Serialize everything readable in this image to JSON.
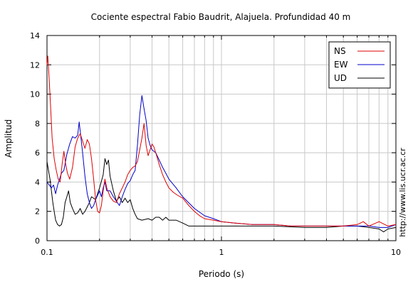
{
  "chart_data": {
    "type": "line",
    "title": "Cociente espectral Fabio Baudrit, Alajuela. Profundidad 40 m",
    "xlabel": "Periodo (s)",
    "ylabel": "Amplitud",
    "x_scale": "log",
    "xlim": [
      0.1,
      10
    ],
    "ylim": [
      0,
      14
    ],
    "x_tick_labels": [
      {
        "value": 0.1,
        "label": "0.1"
      },
      {
        "value": 1,
        "label": "1"
      },
      {
        "value": 10,
        "label": "10"
      }
    ],
    "y_ticks": [
      0,
      2,
      4,
      6,
      8,
      10,
      12,
      14
    ],
    "grid": true,
    "legend_position": "top-right",
    "source_note": "http://www.lis.ucr.ac.cr",
    "series": [
      {
        "name": "NS",
        "color": "#e00000",
        "points": [
          [
            0.1,
            12.0
          ],
          [
            0.101,
            12.6
          ],
          [
            0.103,
            11.0
          ],
          [
            0.105,
            9.0
          ],
          [
            0.107,
            7.0
          ],
          [
            0.11,
            5.6
          ],
          [
            0.113,
            4.8
          ],
          [
            0.116,
            4.2
          ],
          [
            0.119,
            4.0
          ],
          [
            0.122,
            5.2
          ],
          [
            0.125,
            6.1
          ],
          [
            0.128,
            5.2
          ],
          [
            0.131,
            4.6
          ],
          [
            0.135,
            4.2
          ],
          [
            0.14,
            5.0
          ],
          [
            0.145,
            6.4
          ],
          [
            0.15,
            7.0
          ],
          [
            0.155,
            7.3
          ],
          [
            0.16,
            6.8
          ],
          [
            0.165,
            6.3
          ],
          [
            0.17,
            6.9
          ],
          [
            0.175,
            6.6
          ],
          [
            0.18,
            5.6
          ],
          [
            0.185,
            4.2
          ],
          [
            0.19,
            2.8
          ],
          [
            0.195,
            2.0
          ],
          [
            0.2,
            1.9
          ],
          [
            0.205,
            2.4
          ],
          [
            0.21,
            3.4
          ],
          [
            0.215,
            4.2
          ],
          [
            0.22,
            3.6
          ],
          [
            0.23,
            3.0
          ],
          [
            0.24,
            2.7
          ],
          [
            0.25,
            2.6
          ],
          [
            0.26,
            3.2
          ],
          [
            0.27,
            3.6
          ],
          [
            0.28,
            4.0
          ],
          [
            0.29,
            4.5
          ],
          [
            0.3,
            4.8
          ],
          [
            0.31,
            5.0
          ],
          [
            0.32,
            5.1
          ],
          [
            0.33,
            5.4
          ],
          [
            0.34,
            6.2
          ],
          [
            0.35,
            7.0
          ],
          [
            0.36,
            8.0
          ],
          [
            0.37,
            6.5
          ],
          [
            0.38,
            5.8
          ],
          [
            0.39,
            6.2
          ],
          [
            0.4,
            6.6
          ],
          [
            0.41,
            6.4
          ],
          [
            0.42,
            6.0
          ],
          [
            0.43,
            5.6
          ],
          [
            0.44,
            5.2
          ],
          [
            0.46,
            4.5
          ],
          [
            0.48,
            4.0
          ],
          [
            0.5,
            3.6
          ],
          [
            0.53,
            3.3
          ],
          [
            0.56,
            3.1
          ],
          [
            0.6,
            2.9
          ],
          [
            0.65,
            2.4
          ],
          [
            0.7,
            2.0
          ],
          [
            0.75,
            1.7
          ],
          [
            0.8,
            1.5
          ],
          [
            0.9,
            1.4
          ],
          [
            1.0,
            1.3
          ],
          [
            1.2,
            1.2
          ],
          [
            1.5,
            1.1
          ],
          [
            2.0,
            1.1
          ],
          [
            2.5,
            1.0
          ],
          [
            3.0,
            1.0
          ],
          [
            3.5,
            1.0
          ],
          [
            4.0,
            1.0
          ],
          [
            5.0,
            1.0
          ],
          [
            6.0,
            1.1
          ],
          [
            6.5,
            1.3
          ],
          [
            7.0,
            1.0
          ],
          [
            8.0,
            1.3
          ],
          [
            9.0,
            1.0
          ],
          [
            10.0,
            1.1
          ]
        ]
      },
      {
        "name": "EW",
        "color": "#0000c8",
        "points": [
          [
            0.1,
            4.0
          ],
          [
            0.103,
            3.8
          ],
          [
            0.106,
            3.6
          ],
          [
            0.109,
            3.8
          ],
          [
            0.112,
            3.2
          ],
          [
            0.115,
            3.8
          ],
          [
            0.118,
            4.2
          ],
          [
            0.121,
            4.6
          ],
          [
            0.125,
            4.8
          ],
          [
            0.13,
            5.9
          ],
          [
            0.135,
            6.6
          ],
          [
            0.14,
            7.1
          ],
          [
            0.145,
            7.0
          ],
          [
            0.15,
            7.2
          ],
          [
            0.153,
            8.1
          ],
          [
            0.156,
            7.2
          ],
          [
            0.16,
            6.0
          ],
          [
            0.165,
            4.4
          ],
          [
            0.17,
            3.2
          ],
          [
            0.175,
            2.6
          ],
          [
            0.18,
            2.2
          ],
          [
            0.185,
            2.4
          ],
          [
            0.19,
            2.8
          ],
          [
            0.2,
            3.4
          ],
          [
            0.205,
            3.0
          ],
          [
            0.21,
            3.6
          ],
          [
            0.215,
            4.0
          ],
          [
            0.22,
            3.4
          ],
          [
            0.23,
            3.4
          ],
          [
            0.24,
            3.0
          ],
          [
            0.25,
            2.7
          ],
          [
            0.26,
            2.4
          ],
          [
            0.27,
            3.0
          ],
          [
            0.28,
            3.5
          ],
          [
            0.29,
            3.9
          ],
          [
            0.3,
            4.1
          ],
          [
            0.31,
            4.5
          ],
          [
            0.32,
            4.8
          ],
          [
            0.33,
            6.5
          ],
          [
            0.34,
            8.6
          ],
          [
            0.35,
            9.9
          ],
          [
            0.36,
            9.0
          ],
          [
            0.37,
            8.2
          ],
          [
            0.38,
            7.0
          ],
          [
            0.39,
            6.5
          ],
          [
            0.4,
            6.2
          ],
          [
            0.42,
            6.0
          ],
          [
            0.44,
            5.5
          ],
          [
            0.46,
            5.0
          ],
          [
            0.48,
            4.6
          ],
          [
            0.5,
            4.2
          ],
          [
            0.55,
            3.6
          ],
          [
            0.6,
            3.0
          ],
          [
            0.7,
            2.2
          ],
          [
            0.8,
            1.7
          ],
          [
            0.9,
            1.5
          ],
          [
            1.0,
            1.3
          ],
          [
            1.2,
            1.2
          ],
          [
            1.5,
            1.1
          ],
          [
            2.0,
            1.1
          ],
          [
            2.5,
            1.0
          ],
          [
            3.0,
            1.0
          ],
          [
            4.0,
            1.0
          ],
          [
            5.0,
            1.0
          ],
          [
            6.0,
            1.0
          ],
          [
            7.0,
            1.0
          ],
          [
            8.0,
            0.9
          ],
          [
            9.0,
            0.9
          ],
          [
            10.0,
            1.1
          ]
        ]
      },
      {
        "name": "UD",
        "color": "#000000",
        "points": [
          [
            0.1,
            5.4
          ],
          [
            0.102,
            4.8
          ],
          [
            0.104,
            4.2
          ],
          [
            0.106,
            3.4
          ],
          [
            0.108,
            2.6
          ],
          [
            0.11,
            2.0
          ],
          [
            0.112,
            1.4
          ],
          [
            0.115,
            1.1
          ],
          [
            0.118,
            1.0
          ],
          [
            0.121,
            1.1
          ],
          [
            0.124,
            1.6
          ],
          [
            0.127,
            2.6
          ],
          [
            0.13,
            3.0
          ],
          [
            0.133,
            3.4
          ],
          [
            0.136,
            2.6
          ],
          [
            0.14,
            2.2
          ],
          [
            0.145,
            1.8
          ],
          [
            0.15,
            1.9
          ],
          [
            0.155,
            2.2
          ],
          [
            0.16,
            1.8
          ],
          [
            0.165,
            2.0
          ],
          [
            0.17,
            2.3
          ],
          [
            0.175,
            2.6
          ],
          [
            0.18,
            3.0
          ],
          [
            0.19,
            2.8
          ],
          [
            0.2,
            3.6
          ],
          [
            0.21,
            4.5
          ],
          [
            0.215,
            5.6
          ],
          [
            0.22,
            5.2
          ],
          [
            0.225,
            5.5
          ],
          [
            0.23,
            4.4
          ],
          [
            0.24,
            3.4
          ],
          [
            0.25,
            2.7
          ],
          [
            0.26,
            3.0
          ],
          [
            0.27,
            2.6
          ],
          [
            0.28,
            2.9
          ],
          [
            0.29,
            2.6
          ],
          [
            0.3,
            2.8
          ],
          [
            0.31,
            2.2
          ],
          [
            0.32,
            1.8
          ],
          [
            0.33,
            1.5
          ],
          [
            0.35,
            1.4
          ],
          [
            0.38,
            1.5
          ],
          [
            0.4,
            1.4
          ],
          [
            0.42,
            1.6
          ],
          [
            0.44,
            1.6
          ],
          [
            0.46,
            1.4
          ],
          [
            0.48,
            1.6
          ],
          [
            0.5,
            1.4
          ],
          [
            0.55,
            1.4
          ],
          [
            0.6,
            1.2
          ],
          [
            0.65,
            1.0
          ],
          [
            0.7,
            1.0
          ],
          [
            0.8,
            1.0
          ],
          [
            1.0,
            1.0
          ],
          [
            1.5,
            1.0
          ],
          [
            2.0,
            1.0
          ],
          [
            3.0,
            0.9
          ],
          [
            4.0,
            0.9
          ],
          [
            5.0,
            1.0
          ],
          [
            6.0,
            1.0
          ],
          [
            7.0,
            0.9
          ],
          [
            8.0,
            0.8
          ],
          [
            8.5,
            0.6
          ],
          [
            9.0,
            0.8
          ],
          [
            10.0,
            0.9
          ]
        ]
      }
    ]
  }
}
